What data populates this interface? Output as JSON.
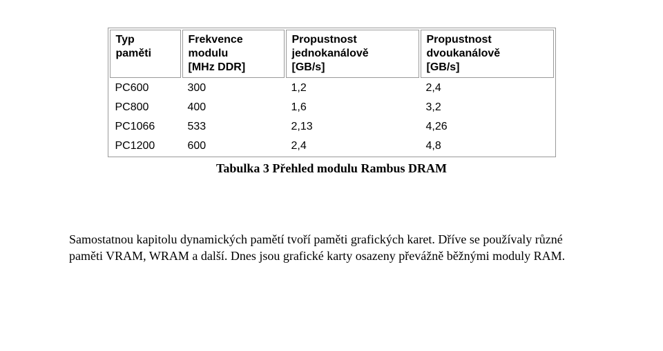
{
  "table": {
    "headers": {
      "type": "Typ\npaměti",
      "freq": "Frekvence\nmodulu\n[MHz DDR]",
      "bw1": "Propustnost\njednokanálově\n[GB/s]",
      "bw2": "Propustnost\ndvoukanálově\n[GB/s]"
    },
    "rows": [
      {
        "type": "PC600",
        "freq": "300",
        "bw1": "1,2",
        "bw2": "2,4"
      },
      {
        "type": "PC800",
        "freq": "400",
        "bw1": "1,6",
        "bw2": "3,2"
      },
      {
        "type": "PC1066",
        "freq": "533",
        "bw1": "2,13",
        "bw2": "4,26"
      },
      {
        "type": "PC1200",
        "freq": "600",
        "bw1": "2,4",
        "bw2": "4,8"
      }
    ],
    "caption": "Tabulka 3 Přehled modulu Rambus DRAM",
    "header_font_size": 16,
    "cell_font_size": 16,
    "border_color": "#999999",
    "background_color": "#ffffff"
  },
  "paragraph": {
    "text": "Samostatnou kapitolu dynamických pamětí tvoří paměti grafických karet. Dříve se používaly různé paměti VRAM, WRAM a další. Dnes jsou grafické karty osazeny převážně běžnými moduly RAM.",
    "font_size": 18
  }
}
